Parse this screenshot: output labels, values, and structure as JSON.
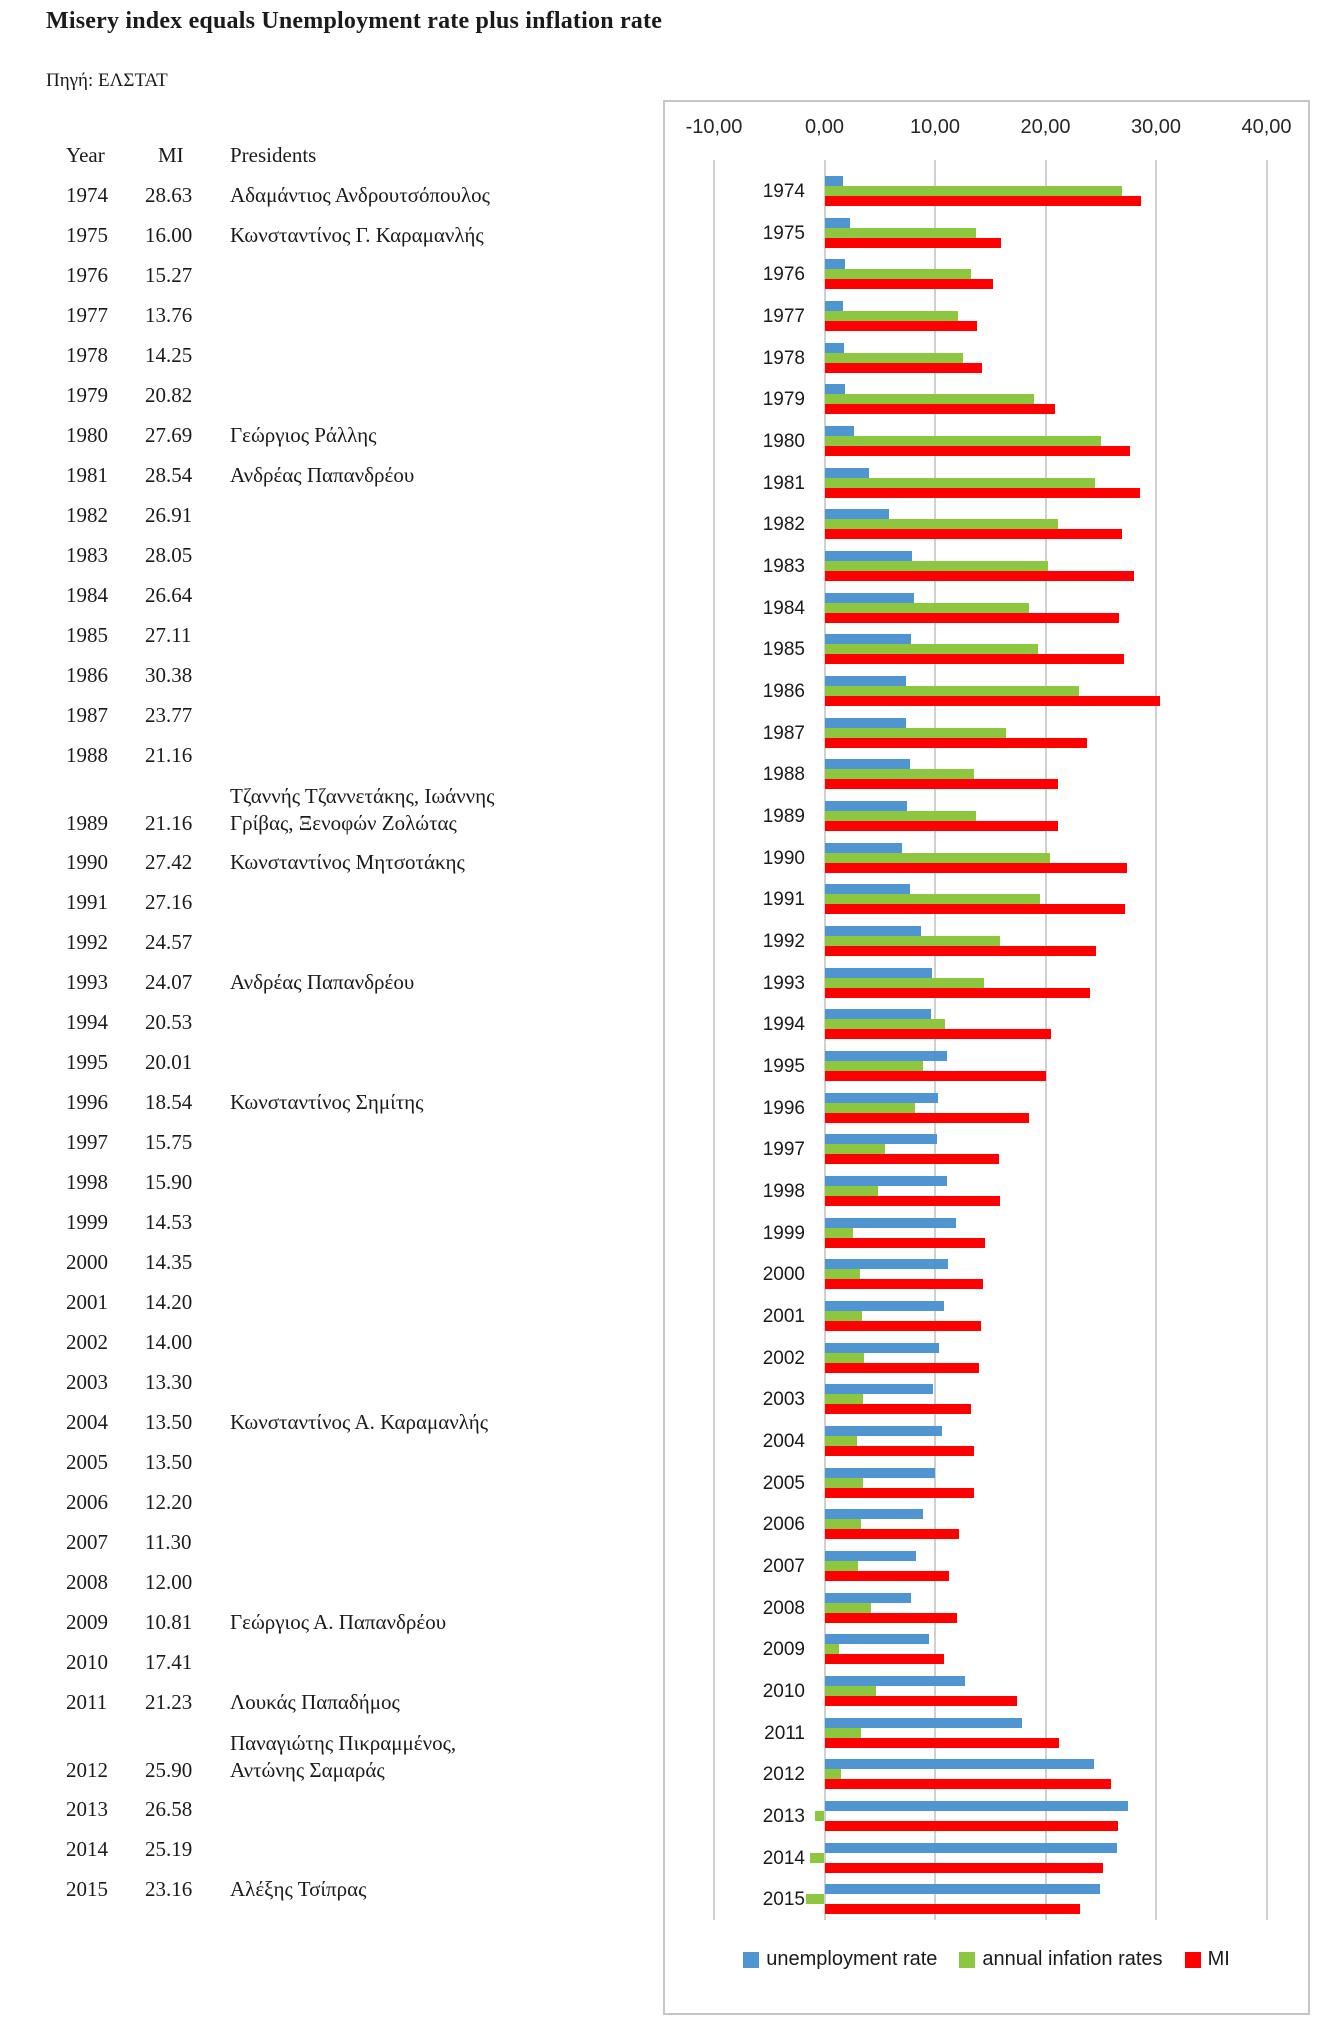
{
  "title": "Misery index equals Unemployment rate plus inflation rate",
  "source": "Πηγή: ΕΛΣΤΑΤ",
  "table": {
    "headers": {
      "year": "Year",
      "mi": "MI",
      "presidents": "Presidents"
    },
    "rows": [
      {
        "year": "1974",
        "mi": "28.63",
        "president": "Αδαμάντιος Ανδρουτσόπουλος"
      },
      {
        "year": "1975",
        "mi": "16.00",
        "president": "Κωνσταντίνος Γ. Καραμανλής"
      },
      {
        "year": "1976",
        "mi": "15.27",
        "president": ""
      },
      {
        "year": "1977",
        "mi": "13.76",
        "president": ""
      },
      {
        "year": "1978",
        "mi": "14.25",
        "president": ""
      },
      {
        "year": "1979",
        "mi": "20.82",
        "president": ""
      },
      {
        "year": "1980",
        "mi": "27.69",
        "president": "Γεώργιος Ράλλης"
      },
      {
        "year": "1981",
        "mi": "28.54",
        "president": "Ανδρέας Παπανδρέου"
      },
      {
        "year": "1982",
        "mi": "26.91",
        "president": ""
      },
      {
        "year": "1983",
        "mi": "28.05",
        "president": ""
      },
      {
        "year": "1984",
        "mi": "26.64",
        "president": ""
      },
      {
        "year": "1985",
        "mi": "27.11",
        "president": ""
      },
      {
        "year": "1986",
        "mi": "30.38",
        "president": ""
      },
      {
        "year": "1987",
        "mi": "23.77",
        "president": ""
      },
      {
        "year": "1988",
        "mi": "21.16",
        "president": ""
      },
      {
        "year": "1989",
        "mi": "21.16",
        "president_line1": "Τζαννής Τζαννετάκης, Ιωάννης",
        "president": "Γρίβας, Ξενοφών Ζολώτας"
      },
      {
        "year": "1990",
        "mi": "27.42",
        "president": "Κωνσταντίνος Μητσοτάκης"
      },
      {
        "year": "1991",
        "mi": "27.16",
        "president": ""
      },
      {
        "year": "1992",
        "mi": "24.57",
        "president": ""
      },
      {
        "year": "1993",
        "mi": "24.07",
        "president": "Ανδρέας Παπανδρέου"
      },
      {
        "year": "1994",
        "mi": "20.53",
        "president": ""
      },
      {
        "year": "1995",
        "mi": "20.01",
        "president": ""
      },
      {
        "year": "1996",
        "mi": "18.54",
        "president": "Κωνσταντίνος Σημίτης"
      },
      {
        "year": "1997",
        "mi": "15.75",
        "president": ""
      },
      {
        "year": "1998",
        "mi": "15.90",
        "president": ""
      },
      {
        "year": "1999",
        "mi": "14.53",
        "president": ""
      },
      {
        "year": "2000",
        "mi": "14.35",
        "president": ""
      },
      {
        "year": "2001",
        "mi": "14.20",
        "president": ""
      },
      {
        "year": "2002",
        "mi": "14.00",
        "president": ""
      },
      {
        "year": "2003",
        "mi": "13.30",
        "president": ""
      },
      {
        "year": "2004",
        "mi": "13.50",
        "president": "Κωνσταντίνος Α. Καραμανλής"
      },
      {
        "year": "2005",
        "mi": "13.50",
        "president": ""
      },
      {
        "year": "2006",
        "mi": "12.20",
        "president": ""
      },
      {
        "year": "2007",
        "mi": "11.30",
        "president": ""
      },
      {
        "year": "2008",
        "mi": "12.00",
        "president": ""
      },
      {
        "year": "2009",
        "mi": "10.81",
        "president": "Γεώργιος Α. Παπανδρέου"
      },
      {
        "year": "2010",
        "mi": "17.41",
        "president": ""
      },
      {
        "year": "2011",
        "mi": "21.23",
        "president": "Λουκάς Παπαδήμος"
      },
      {
        "year": "2012",
        "mi": "25.90",
        "president_line1": "Παναγιώτης Πικραμμένος,",
        "president": "Αντώνης Σαμαράς"
      },
      {
        "year": "2013",
        "mi": "26.58",
        "president": ""
      },
      {
        "year": "2014",
        "mi": "25.19",
        "president": ""
      },
      {
        "year": "2015",
        "mi": "23.16",
        "president": "Αλέξης Τσίπρας"
      }
    ]
  },
  "chart_data": {
    "type": "bar",
    "orientation": "horizontal",
    "categories": [
      1974,
      1975,
      1976,
      1977,
      1978,
      1979,
      1980,
      1981,
      1982,
      1983,
      1984,
      1985,
      1986,
      1987,
      1988,
      1989,
      1990,
      1991,
      1992,
      1993,
      1994,
      1995,
      1996,
      1997,
      1998,
      1999,
      2000,
      2001,
      2002,
      2003,
      2004,
      2005,
      2006,
      2007,
      2008,
      2009,
      2010,
      2011,
      2012,
      2013,
      2014,
      2015
    ],
    "series": [
      {
        "name": "unemployment rate",
        "color": "#4E95D2",
        "values": [
          1.7,
          2.3,
          1.9,
          1.7,
          1.8,
          1.9,
          2.7,
          4.0,
          5.8,
          7.9,
          8.1,
          7.8,
          7.4,
          7.4,
          7.7,
          7.5,
          7.0,
          7.7,
          8.7,
          9.7,
          9.6,
          11.1,
          10.3,
          10.2,
          11.1,
          11.9,
          11.2,
          10.8,
          10.4,
          9.8,
          10.6,
          10.0,
          8.9,
          8.3,
          7.8,
          9.5,
          12.7,
          17.9,
          24.4,
          27.5,
          26.5,
          24.9
        ]
      },
      {
        "name": "annual infation rates",
        "color": "#8DC63F",
        "values": [
          26.9,
          13.7,
          13.3,
          12.1,
          12.5,
          19.0,
          25.0,
          24.5,
          21.1,
          20.2,
          18.5,
          19.3,
          23.0,
          16.4,
          13.5,
          13.7,
          20.4,
          19.5,
          15.9,
          14.4,
          10.9,
          8.9,
          8.2,
          5.5,
          4.8,
          2.6,
          3.2,
          3.4,
          3.6,
          3.5,
          2.9,
          3.5,
          3.3,
          3.0,
          4.2,
          1.3,
          4.7,
          3.3,
          1.5,
          -0.9,
          -1.3,
          -1.7
        ]
      },
      {
        "name": "MI",
        "color": "#FF0000",
        "values": [
          28.63,
          16.0,
          15.27,
          13.76,
          14.25,
          20.82,
          27.69,
          28.54,
          26.91,
          28.05,
          26.64,
          27.11,
          30.38,
          23.77,
          21.16,
          21.16,
          27.42,
          27.16,
          24.57,
          24.07,
          20.53,
          20.01,
          18.54,
          15.75,
          15.9,
          14.53,
          14.35,
          14.2,
          14.0,
          13.3,
          13.5,
          13.5,
          12.2,
          11.3,
          12.0,
          10.81,
          17.41,
          21.23,
          25.9,
          26.58,
          25.19,
          23.16
        ]
      }
    ],
    "x_axis": {
      "tick_labels": [
        "-10,00",
        "0,00",
        "10,00",
        "20,00",
        "30,00",
        "40,00"
      ],
      "tick_values": [
        -10,
        0,
        10,
        20,
        30,
        40
      ],
      "range": [
        -14.4,
        46
      ]
    },
    "legend": {
      "position": "bottom",
      "entries": [
        "unemployment rate",
        "annual infation rates",
        "MI"
      ]
    },
    "grid": true
  }
}
